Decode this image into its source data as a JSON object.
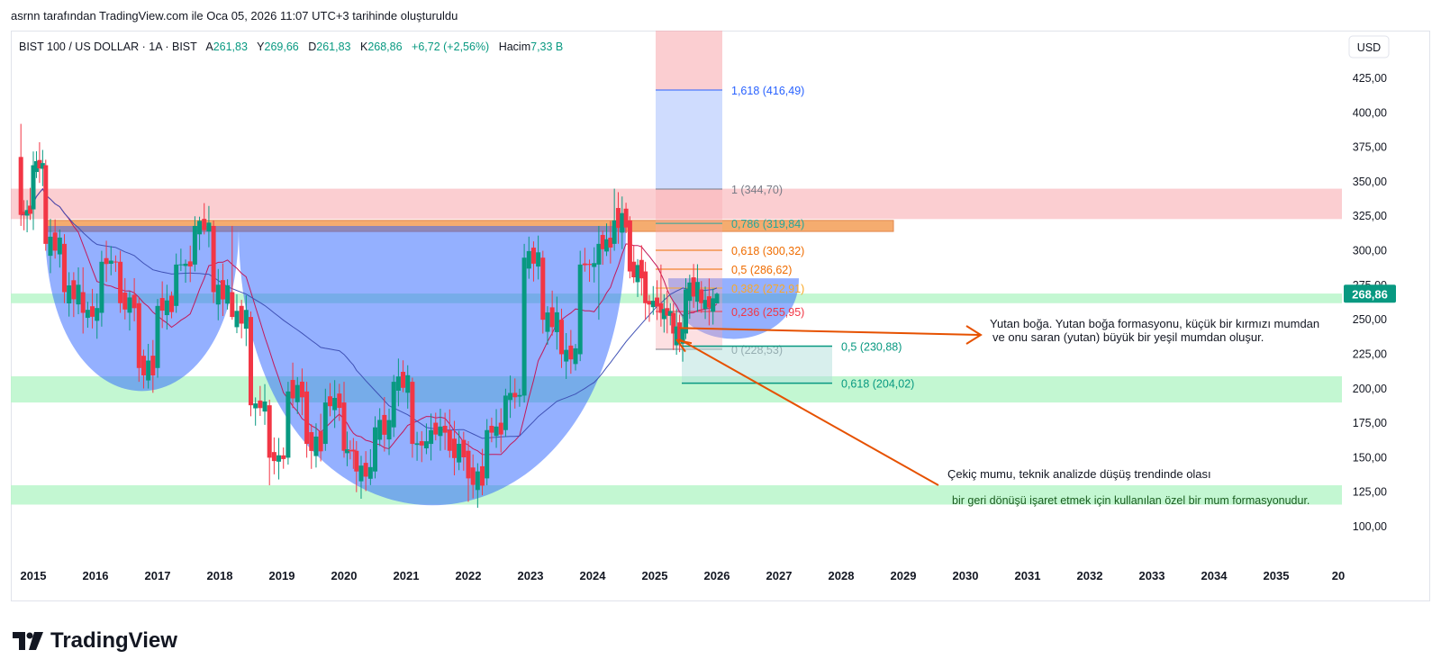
{
  "attribution": "asrnn tarafından TradingView.com ile Oca 05, 2026 11:07 UTC+3 tarihinde oluşturuldu",
  "brand": {
    "name": "TradingView",
    "icon": "tradingview-logo-icon"
  },
  "header": {
    "symbol": "BIST 100 / US DOLLAR · 1A · BIST",
    "open_label": "A",
    "open": "261,83",
    "high_label": "Y",
    "high": "269,66",
    "low_label": "D",
    "low": "261,83",
    "close_label": "K",
    "close": "268,86",
    "change": "+6,72 (+2,56%)",
    "volume_label": "Hacim",
    "volume": "7,33 B"
  },
  "currency": "USD",
  "price_tag": "268,86",
  "colors": {
    "up": "#089981",
    "down": "#f23645",
    "fib_blue": "#2962ff",
    "arrow": "#e65100",
    "zone_green": "#b9f6ca",
    "zone_red": "#f8a5ab"
  },
  "chart_data": {
    "type": "candlestick",
    "y_ticks": [
      "425,00",
      "400,00",
      "375,00",
      "350,00",
      "325,00",
      "300,00",
      "275,00",
      "250,00",
      "225,00",
      "200,00",
      "175,00",
      "150,00",
      "125,00",
      "100,00"
    ],
    "x_ticks": [
      "2015",
      "2016",
      "2017",
      "2018",
      "2019",
      "2020",
      "2021",
      "2022",
      "2023",
      "2024",
      "2025",
      "2026",
      "2027",
      "2028",
      "2029",
      "2030",
      "2031",
      "2032",
      "2033",
      "2034",
      "2035",
      "20"
    ],
    "ylim": [
      80,
      450
    ],
    "last_price": 268.86,
    "fib_levels": [
      {
        "label": "1,618 (416,49)",
        "value": 416.49
      },
      {
        "label": "1 (344,70)",
        "value": 344.7
      },
      {
        "label": "0,786 (319,84)",
        "value": 319.84
      },
      {
        "label": "0,618 (300,32)",
        "value": 300.32
      },
      {
        "label": "0,5 (286,62)",
        "value": 286.62
      },
      {
        "label": "0,382 (272,91)",
        "value": 272.91
      },
      {
        "label": "0,236 (255,95)",
        "value": 255.95
      },
      {
        "label": "0 (228,53)",
        "value": 228.53
      }
    ],
    "projection_levels": [
      {
        "label": "0,5 (230,88)",
        "value": 230.88
      },
      {
        "label": "0,618 (204,02)",
        "value": 204.02
      }
    ],
    "zones": [
      {
        "type": "resistance",
        "low": 323,
        "high": 345
      },
      {
        "type": "neckline",
        "low": 314,
        "high": 322
      },
      {
        "type": "support",
        "low": 262,
        "high": 269
      },
      {
        "type": "support",
        "low": 190,
        "high": 209
      },
      {
        "type": "support",
        "low": 116,
        "high": 130
      }
    ],
    "annotations": [
      "Yutan boğa. Yutan boğa formasyonu, küçük bir kırmızı mumdan",
      "ve onu saran (yutan) büyük bir yeşil mumdan oluşur.",
      "Çekiç mumu, teknik analizde düşüş trendinde olası",
      "bir geri dönüşü işaret etmek için kullanılan özel bir mum formasyonudur."
    ],
    "candles_by_year": [
      {
        "year": 2014.8,
        "o": 368,
        "h": 392,
        "l": 318,
        "c": 326
      },
      {
        "year": 2015.0,
        "o": 330,
        "h": 372,
        "l": 315,
        "c": 362
      },
      {
        "year": 2015.2,
        "o": 362,
        "h": 366,
        "l": 300,
        "c": 305
      },
      {
        "year": 2015.5,
        "o": 305,
        "h": 312,
        "l": 262,
        "c": 270
      },
      {
        "year": 2015.8,
        "o": 270,
        "h": 288,
        "l": 240,
        "c": 255
      },
      {
        "year": 2016.1,
        "o": 255,
        "h": 300,
        "l": 245,
        "c": 292
      },
      {
        "year": 2016.4,
        "o": 292,
        "h": 300,
        "l": 255,
        "c": 262
      },
      {
        "year": 2016.7,
        "o": 262,
        "h": 266,
        "l": 205,
        "c": 215
      },
      {
        "year": 2017.0,
        "o": 215,
        "h": 265,
        "l": 208,
        "c": 260
      },
      {
        "year": 2017.3,
        "o": 260,
        "h": 298,
        "l": 255,
        "c": 290
      },
      {
        "year": 2017.6,
        "o": 290,
        "h": 325,
        "l": 285,
        "c": 318
      },
      {
        "year": 2017.9,
        "o": 318,
        "h": 322,
        "l": 262,
        "c": 270
      },
      {
        "year": 2018.2,
        "o": 270,
        "h": 318,
        "l": 250,
        "c": 252
      },
      {
        "year": 2018.5,
        "o": 252,
        "h": 256,
        "l": 180,
        "c": 188
      },
      {
        "year": 2018.8,
        "o": 188,
        "h": 192,
        "l": 130,
        "c": 150
      },
      {
        "year": 2019.1,
        "o": 150,
        "h": 205,
        "l": 145,
        "c": 198
      },
      {
        "year": 2019.4,
        "o": 198,
        "h": 205,
        "l": 150,
        "c": 160
      },
      {
        "year": 2019.7,
        "o": 160,
        "h": 200,
        "l": 155,
        "c": 190
      },
      {
        "year": 2020.0,
        "o": 190,
        "h": 205,
        "l": 150,
        "c": 155
      },
      {
        "year": 2020.2,
        "o": 155,
        "h": 162,
        "l": 125,
        "c": 140
      },
      {
        "year": 2020.5,
        "o": 140,
        "h": 180,
        "l": 135,
        "c": 172
      },
      {
        "year": 2020.8,
        "o": 172,
        "h": 210,
        "l": 165,
        "c": 205
      },
      {
        "year": 2021.1,
        "o": 205,
        "h": 208,
        "l": 150,
        "c": 160
      },
      {
        "year": 2021.4,
        "o": 160,
        "h": 182,
        "l": 148,
        "c": 170
      },
      {
        "year": 2021.7,
        "o": 170,
        "h": 185,
        "l": 150,
        "c": 155
      },
      {
        "year": 2022.0,
        "o": 155,
        "h": 162,
        "l": 118,
        "c": 135
      },
      {
        "year": 2022.3,
        "o": 135,
        "h": 178,
        "l": 130,
        "c": 170
      },
      {
        "year": 2022.6,
        "o": 170,
        "h": 200,
        "l": 165,
        "c": 195
      },
      {
        "year": 2022.9,
        "o": 195,
        "h": 305,
        "l": 190,
        "c": 295
      },
      {
        "year": 2023.2,
        "o": 295,
        "h": 300,
        "l": 240,
        "c": 250
      },
      {
        "year": 2023.5,
        "o": 250,
        "h": 258,
        "l": 215,
        "c": 225
      },
      {
        "year": 2023.8,
        "o": 225,
        "h": 300,
        "l": 220,
        "c": 290
      },
      {
        "year": 2024.1,
        "o": 290,
        "h": 318,
        "l": 250,
        "c": 305
      },
      {
        "year": 2024.35,
        "o": 305,
        "h": 345,
        "l": 300,
        "c": 322
      },
      {
        "year": 2024.6,
        "o": 322,
        "h": 325,
        "l": 280,
        "c": 285
      },
      {
        "year": 2024.85,
        "o": 285,
        "h": 292,
        "l": 250,
        "c": 262
      },
      {
        "year": 2025.1,
        "o": 262,
        "h": 290,
        "l": 245,
        "c": 255
      },
      {
        "year": 2025.3,
        "o": 255,
        "h": 262,
        "l": 228,
        "c": 240
      },
      {
        "year": 2025.5,
        "o": 240,
        "h": 280,
        "l": 236,
        "c": 272
      },
      {
        "year": 2025.75,
        "o": 272,
        "h": 278,
        "l": 255,
        "c": 262
      },
      {
        "year": 2026.0,
        "o": 261.83,
        "h": 269.66,
        "l": 261.83,
        "c": 268.86
      }
    ]
  }
}
